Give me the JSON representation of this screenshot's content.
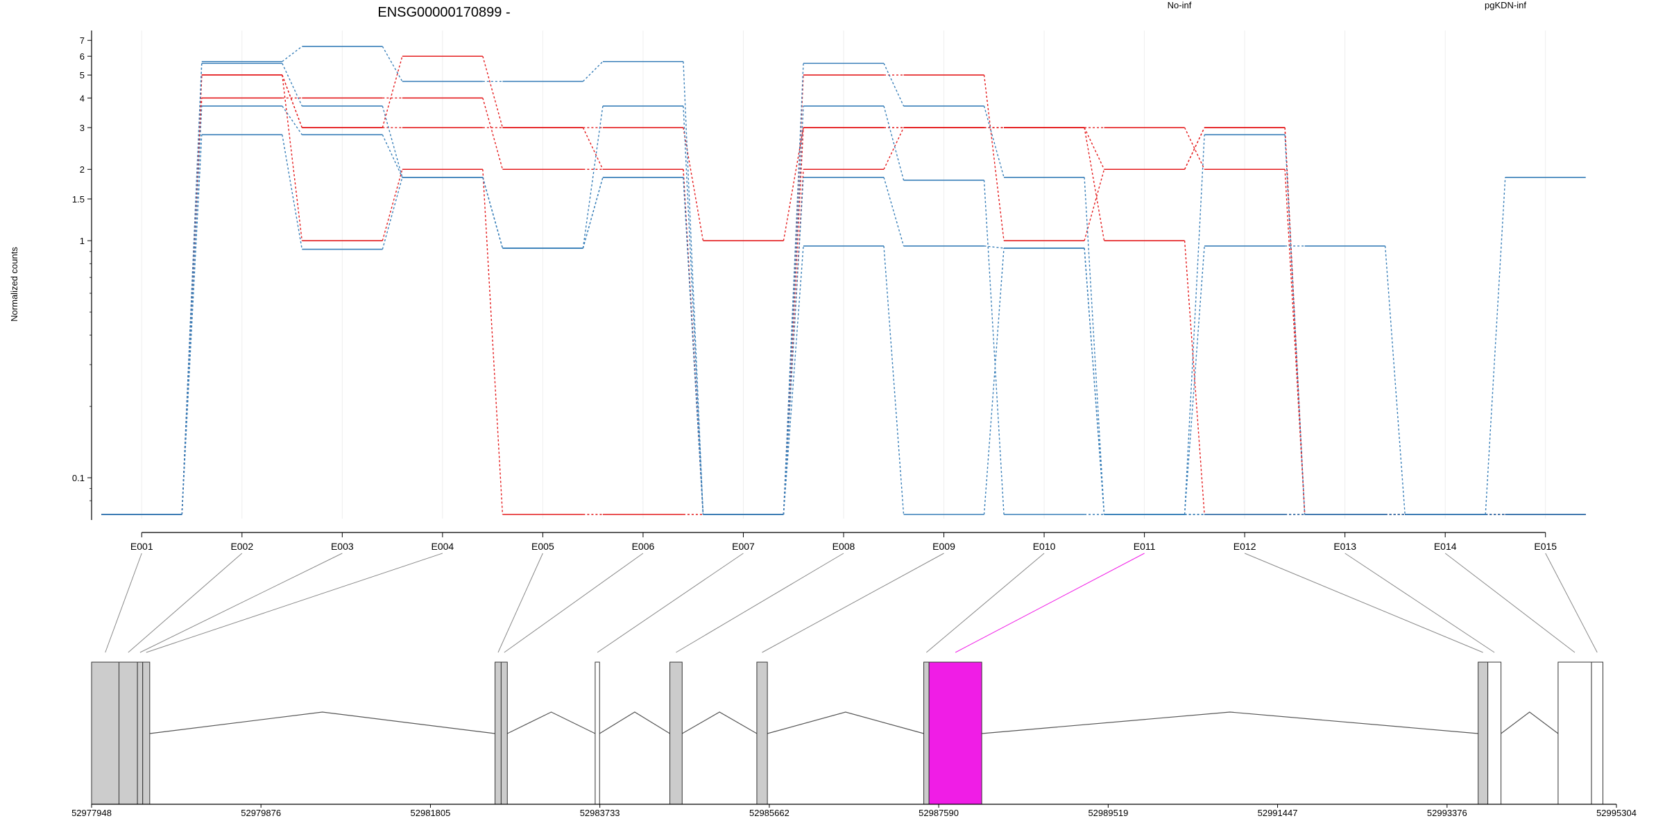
{
  "chart_data": {
    "type": "line",
    "title": "ENSG00000170899 -",
    "ylabel": "Normalized counts",
    "y_scale": "log",
    "y_ticks": [
      "7",
      "6",
      "5",
      "4",
      "3",
      "2",
      "1.5",
      "1",
      "0.1"
    ],
    "y_tick_values": [
      7,
      6,
      5,
      4,
      3,
      2,
      1.5,
      1,
      0.1
    ],
    "ylim": [
      0.07,
      7.5
    ],
    "zero_floor_value": 0.07,
    "categories": [
      "E001",
      "E002",
      "E003",
      "E004",
      "E005",
      "E006",
      "E007",
      "E008",
      "E009",
      "E010",
      "E011",
      "E012",
      "E013",
      "E014",
      "E015"
    ],
    "legend": [
      {
        "label": "No-inf",
        "color": "#e41a1c"
      },
      {
        "label": "pgKDN-inf",
        "color": "#377eb8"
      }
    ],
    "series": [
      {
        "group": "No-inf",
        "color": "#e41a1c",
        "values": [
          0,
          5,
          3,
          6,
          3,
          2,
          0,
          3,
          3,
          3,
          2,
          3,
          0,
          0,
          0
        ]
      },
      {
        "group": "No-inf",
        "color": "#e41a1c",
        "values": [
          0,
          5,
          3,
          3,
          3,
          3,
          1,
          3,
          3,
          3,
          3,
          2,
          0,
          0,
          0
        ]
      },
      {
        "group": "No-inf",
        "color": "#e41a1c",
        "values": [
          0,
          4,
          4,
          4,
          2,
          2,
          0,
          5,
          5,
          1,
          2,
          3,
          0,
          0,
          0
        ]
      },
      {
        "group": "No-inf",
        "color": "#e41a1c",
        "values": [
          0,
          5,
          1,
          2,
          0,
          0,
          0,
          2,
          3,
          3,
          1,
          0,
          0,
          0,
          0
        ]
      },
      {
        "group": "pgKDN-inf",
        "color": "#377eb8",
        "values": [
          0,
          5.7,
          6.6,
          4.7,
          4.7,
          5.7,
          0,
          5.6,
          3.7,
          1.85,
          0,
          0.95,
          0.95,
          0,
          1.85
        ]
      },
      {
        "group": "pgKDN-inf",
        "color": "#377eb8",
        "values": [
          0,
          5.6,
          3.7,
          1.85,
          0.93,
          1.85,
          0,
          3.7,
          1.8,
          0,
          0,
          2.8,
          0,
          0,
          0
        ]
      },
      {
        "group": "pgKDN-inf",
        "color": "#377eb8",
        "values": [
          0,
          3.7,
          2.8,
          1.85,
          0.93,
          3.7,
          0,
          1.85,
          0.95,
          0.93,
          0,
          0,
          0,
          0,
          0
        ]
      },
      {
        "group": "pgKDN-inf",
        "color": "#377eb8",
        "values": [
          0,
          2.8,
          0.92,
          1.85,
          0.93,
          1.85,
          0,
          0.95,
          0,
          0.93,
          0,
          0,
          0,
          0,
          0
        ]
      }
    ],
    "gene_model": {
      "coordinate_ticks": [
        "52977948",
        "52979876",
        "52981805",
        "52983733",
        "52985662",
        "52987590",
        "52989519",
        "52991447",
        "52993376",
        "52995304"
      ],
      "coordinate_tick_values": [
        52977948,
        52979876,
        52981805,
        52983733,
        52985662,
        52987590,
        52989519,
        52991447,
        52993376,
        52995304
      ],
      "range": [
        52977948,
        52995304
      ],
      "exons": [
        {
          "id": "E001",
          "start": 52977948,
          "end": 52978260,
          "fill": "#cccccc"
        },
        {
          "id": "E002",
          "start": 52978260,
          "end": 52978470,
          "fill": "#cccccc"
        },
        {
          "id": "E003",
          "start": 52978470,
          "end": 52978530,
          "fill": "#cccccc"
        },
        {
          "id": "E004",
          "start": 52978530,
          "end": 52978610,
          "fill": "#cccccc"
        },
        {
          "id": "E005",
          "start": 52982540,
          "end": 52982610,
          "fill": "#cccccc"
        },
        {
          "id": "E006",
          "start": 52982610,
          "end": 52982680,
          "fill": "#cccccc"
        },
        {
          "id": "E007",
          "start": 52983680,
          "end": 52983730,
          "fill": "#ffffff"
        },
        {
          "id": "E008",
          "start": 52984530,
          "end": 52984670,
          "fill": "#cccccc"
        },
        {
          "id": "E009",
          "start": 52985520,
          "end": 52985640,
          "fill": "#cccccc"
        },
        {
          "id": "E010",
          "start": 52987420,
          "end": 52987480,
          "fill": "#cccccc"
        },
        {
          "id": "E011",
          "start": 52987480,
          "end": 52988080,
          "fill": "#f01de6"
        },
        {
          "id": "E012",
          "start": 52993730,
          "end": 52993840,
          "fill": "#cccccc"
        },
        {
          "id": "E013",
          "start": 52993840,
          "end": 52993990,
          "fill": "#ffffff"
        },
        {
          "id": "E014",
          "start": 52994640,
          "end": 52995020,
          "fill": "#ffffff"
        },
        {
          "id": "E015",
          "start": 52995020,
          "end": 52995150,
          "fill": "#ffffff"
        }
      ],
      "highlighted_exon": "E011",
      "highlight_color": "#f01de6"
    }
  }
}
